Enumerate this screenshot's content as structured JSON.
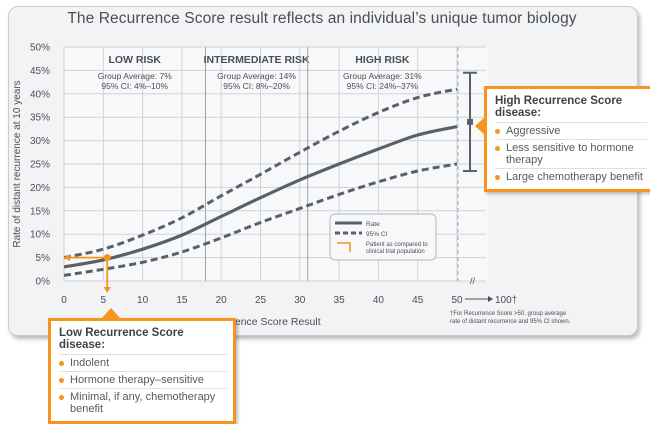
{
  "title": "The Recurrence Score result reflects an individual’s unique tumor biology",
  "chart_data": {
    "type": "line",
    "xlabel": "Recurrence Score Result",
    "ylabel": "Rate of distant recurrence at 10 years",
    "x_ticks": [
      "0",
      "5",
      "10",
      "15",
      "20",
      "25",
      "30",
      "35",
      "40",
      "45",
      "50",
      "100†"
    ],
    "y_ticks": [
      "0%",
      "5%",
      "10%",
      "15%",
      "20%",
      "25%",
      "30%",
      "35%",
      "40%",
      "45%",
      "50%"
    ],
    "xlim": [
      0,
      50
    ],
    "ylim": [
      0,
      50
    ],
    "grid": true,
    "regions": [
      {
        "label": "LOW RISK",
        "x_start": 0,
        "x_end": 18,
        "avg": "Group Average: 7%",
        "ci": "95% CI: 4%–10%"
      },
      {
        "label": "INTERMEDIATE RISK",
        "x_start": 18,
        "x_end": 31,
        "avg": "Group Average: 14%",
        "ci": "95% CI: 8%–20%"
      },
      {
        "label": "HIGH RISK",
        "x_start": 31,
        "x_end": 50,
        "avg": "Group Average: 31%",
        "ci": "95% CI: 24%–37%"
      }
    ],
    "series": [
      {
        "name": "Rate",
        "style": "solid",
        "x": [
          0,
          5,
          10,
          15,
          20,
          25,
          30,
          35,
          40,
          45,
          50
        ],
        "y": [
          3,
          4.5,
          6.8,
          9.8,
          13.8,
          17.8,
          21.6,
          25,
          28.2,
          31.2,
          33
        ]
      },
      {
        "name": "95% CI",
        "style": "dashed",
        "x": [
          0,
          5,
          10,
          15,
          20,
          25,
          30,
          35,
          40,
          45,
          50
        ],
        "y": [
          5,
          6.8,
          9.8,
          13.5,
          18.2,
          22.8,
          27.5,
          32,
          36,
          39.2,
          41
        ]
      },
      {
        "name": "95% CI lower",
        "style": "dashed",
        "x": [
          0,
          5,
          10,
          15,
          20,
          25,
          30,
          35,
          40,
          45,
          50
        ],
        "y": [
          1.2,
          2.5,
          4,
          6.2,
          9.2,
          12.5,
          15.5,
          18.5,
          21.2,
          23.5,
          25
        ]
      }
    ],
    "error_bar": {
      "x": "100†",
      "low": 23.5,
      "mid": 34,
      "high": 44.5
    },
    "marker": {
      "x": 5.5,
      "y": 5
    },
    "legend": {
      "placement": "lower-right",
      "entries": [
        "Rate",
        "95% CI",
        "Patient as compared to clinical trial population"
      ]
    },
    "footnote": [
      "†For Recurrence Score >50, group average",
      "rate of distant recurrence and 95% CI shown."
    ]
  },
  "callout_high": {
    "heading": "High Recurrence Score disease:",
    "items": [
      "Aggressive",
      "Less sensitive to hormone therapy",
      "Large chemotherapy benefit"
    ]
  },
  "callout_low": {
    "heading": "Low Recurrence Score disease:",
    "items": [
      "Indolent",
      "Hormone therapy–sensitive",
      "Minimal, if any, chemotherapy benefit"
    ]
  },
  "colors": {
    "line": "#5b6066",
    "accent": "#f7941d",
    "grid": "#cfd3d8",
    "text": "#4a4f55"
  }
}
